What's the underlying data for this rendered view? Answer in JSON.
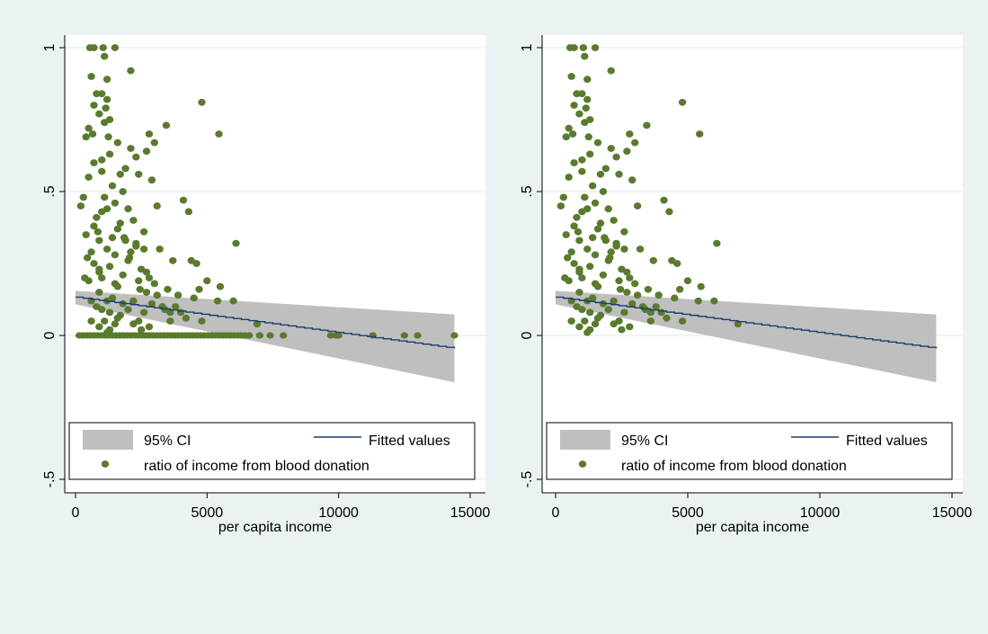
{
  "colors": {
    "background": "#eaf2f3",
    "plot_region": "#ffffff",
    "marker": "#5a7a2e",
    "fit_line": "#1a3f6e",
    "ci_band": "#bfbfbf",
    "gridline": "#dde8ea"
  },
  "chart_data": [
    {
      "type": "scatter",
      "xlabel": "per capita income",
      "ylabel": "",
      "xlim": [
        0,
        15000
      ],
      "ylim": [
        -0.5,
        1
      ],
      "x_ticks": [
        "0",
        "5000",
        "10000",
        "15000"
      ],
      "y_ticks": [
        "-.5",
        "0",
        ".5",
        "1"
      ],
      "grid": true,
      "legend_position": "bottom",
      "legend": {
        "ci": "95% CI",
        "fit": "Fitted values",
        "points": "ratio of income from blood donation"
      },
      "fit_line": {
        "x": [
          0,
          14400
        ],
        "y": [
          0.133,
          -0.045
        ]
      },
      "ci_band": {
        "x": [
          0,
          14400
        ],
        "upper": [
          0.155,
          0.073
        ],
        "lower": [
          0.108,
          -0.163
        ]
      },
      "zero_ratio_points": {
        "y": 0,
        "x": [
          140,
          280,
          420,
          560,
          700,
          840,
          980,
          1120,
          1260,
          1400,
          1540,
          1680,
          1820,
          1960,
          2100,
          2240,
          2380,
          2520,
          2660,
          2800,
          2940,
          3080,
          3220,
          3360,
          3500,
          3640,
          3780,
          3920,
          4060,
          4200,
          4340,
          4480,
          4620,
          4760,
          4900,
          5040,
          5180,
          5320,
          5460,
          5600,
          5740,
          5880,
          6020,
          6160,
          6300,
          6440,
          6600,
          7000,
          7400,
          7900,
          9700,
          9900,
          10000,
          11300,
          12500,
          13000,
          14400
        ]
      },
      "points": {
        "x": [
          550,
          700,
          1050,
          1500,
          600,
          1100,
          1200,
          1000,
          800,
          1200,
          2100,
          700,
          1150,
          4800,
          900,
          1100,
          500,
          1300,
          650,
          1250,
          3450,
          2800,
          5450,
          400,
          1600,
          3000,
          2100,
          1300,
          2700,
          700,
          2300,
          1900,
          1000,
          1700,
          2400,
          500,
          2900,
          4100,
          1800,
          1100,
          1500,
          2000,
          3100,
          1000,
          4300,
          800,
          2200,
          700,
          1600,
          2600,
          400,
          900,
          1400,
          2300,
          3200,
          1200,
          2600,
          600,
          1500,
          3700,
          4400,
          2000,
          700,
          1300,
          6100,
          2500,
          900,
          1800,
          2800,
          1000,
          2400,
          1500,
          5000,
          3000,
          1600,
          3500,
          4700,
          900,
          5500,
          2700,
          3900,
          1400,
          1200,
          600,
          4500,
          2200,
          1800,
          2900,
          3300,
          800,
          5400,
          6000,
          1000,
          2000,
          3800,
          1300,
          2600,
          1700,
          4200,
          1600,
          600,
          1100,
          2400,
          3600,
          4800,
          1500,
          2200,
          900,
          2800,
          6900,
          1300,
          2500,
          1200,
          4000,
          200,
          300,
          450,
          850,
          1700,
          1900,
          2100,
          2300,
          3400,
          3100,
          1000,
          1400,
          2700,
          3600,
          4600,
          900,
          500,
          1200,
          1850,
          2050,
          2450,
          350
        ],
        "y": [
          1.0,
          1.0,
          1.0,
          1.0,
          0.9,
          0.97,
          0.89,
          0.84,
          0.84,
          0.82,
          0.92,
          0.8,
          0.79,
          0.81,
          0.77,
          0.74,
          0.72,
          0.75,
          0.7,
          0.69,
          0.73,
          0.7,
          0.7,
          0.69,
          0.67,
          0.67,
          0.65,
          0.63,
          0.64,
          0.6,
          0.62,
          0.58,
          0.57,
          0.56,
          0.56,
          0.55,
          0.54,
          0.47,
          0.5,
          0.48,
          0.46,
          0.44,
          0.45,
          0.43,
          0.43,
          0.41,
          0.4,
          0.38,
          0.37,
          0.36,
          0.35,
          0.33,
          0.34,
          0.32,
          0.3,
          0.3,
          0.3,
          0.29,
          0.28,
          0.26,
          0.26,
          0.26,
          0.25,
          0.24,
          0.32,
          0.23,
          0.22,
          0.21,
          0.2,
          0.2,
          0.19,
          0.18,
          0.19,
          0.18,
          0.17,
          0.16,
          0.16,
          0.15,
          0.17,
          0.15,
          0.14,
          0.13,
          0.12,
          0.12,
          0.13,
          0.12,
          0.11,
          0.11,
          0.1,
          0.1,
          0.12,
          0.12,
          0.09,
          0.09,
          0.1,
          0.08,
          0.08,
          0.07,
          0.06,
          0.06,
          0.05,
          0.05,
          0.05,
          0.05,
          0.05,
          0.04,
          0.04,
          0.03,
          0.03,
          0.04,
          0.02,
          0.02,
          0.01,
          0.08,
          0.45,
          0.48,
          0.27,
          0.36,
          0.39,
          0.33,
          0.29,
          0.31,
          0.09,
          0.14,
          0.61,
          0.52,
          0.22,
          0.08,
          0.25,
          0.23,
          0.19,
          0.44,
          0.34,
          0.27,
          0.16,
          0.2
        ]
      }
    },
    {
      "type": "scatter",
      "xlabel": "per capita income",
      "ylabel": "",
      "xlim": [
        0,
        15000
      ],
      "ylim": [
        -0.5,
        1
      ],
      "x_ticks": [
        "0",
        "5000",
        "10000",
        "15000"
      ],
      "y_ticks": [
        "-.5",
        "0",
        ".5",
        "1"
      ],
      "grid": true,
      "legend_position": "bottom",
      "legend": {
        "ci": "95% CI",
        "fit": "Fitted values",
        "points": "ratio of income from blood donation"
      },
      "fit_line": {
        "x": [
          0,
          14400
        ],
        "y": [
          0.133,
          -0.045
        ]
      },
      "ci_band": {
        "x": [
          0,
          14400
        ],
        "upper": [
          0.155,
          0.073
        ],
        "lower": [
          0.108,
          -0.163
        ]
      },
      "zero_ratio_points": {
        "y": 0,
        "x": []
      },
      "points": {
        "x": [
          550,
          700,
          1050,
          1500,
          600,
          1100,
          1200,
          1000,
          800,
          1200,
          2100,
          700,
          1150,
          4800,
          900,
          1100,
          500,
          1300,
          650,
          1250,
          3450,
          2800,
          5450,
          400,
          1600,
          3000,
          2100,
          1300,
          2700,
          700,
          2300,
          1900,
          1000,
          1700,
          2400,
          500,
          2900,
          4100,
          1800,
          1100,
          1500,
          2000,
          3100,
          1000,
          4300,
          800,
          2200,
          700,
          1600,
          2600,
          400,
          900,
          1400,
          2300,
          3200,
          1200,
          2600,
          600,
          1500,
          3700,
          4400,
          2000,
          700,
          1300,
          6100,
          2500,
          900,
          1800,
          2800,
          1000,
          2400,
          1500,
          5000,
          3000,
          1600,
          3500,
          4700,
          900,
          5500,
          2700,
          3900,
          1400,
          1200,
          600,
          4500,
          2200,
          1800,
          2900,
          3300,
          800,
          5400,
          6000,
          1000,
          2000,
          3800,
          1300,
          2600,
          1700,
          4200,
          1600,
          600,
          1100,
          2400,
          3600,
          4800,
          1500,
          2200,
          900,
          2800,
          6900,
          1300,
          2500,
          1200,
          4000,
          200,
          300,
          450,
          850,
          1700,
          1900,
          2100,
          2300,
          3400,
          3100,
          1000,
          1400,
          2700,
          3600,
          4600,
          900,
          500,
          1200,
          1850,
          2050,
          2450,
          350
        ],
        "y": [
          1.0,
          1.0,
          1.0,
          1.0,
          0.9,
          0.97,
          0.89,
          0.84,
          0.84,
          0.82,
          0.92,
          0.8,
          0.79,
          0.81,
          0.77,
          0.74,
          0.72,
          0.75,
          0.7,
          0.69,
          0.73,
          0.7,
          0.7,
          0.69,
          0.67,
          0.67,
          0.65,
          0.63,
          0.64,
          0.6,
          0.62,
          0.58,
          0.57,
          0.56,
          0.56,
          0.55,
          0.54,
          0.47,
          0.5,
          0.48,
          0.46,
          0.44,
          0.45,
          0.43,
          0.43,
          0.41,
          0.4,
          0.38,
          0.37,
          0.36,
          0.35,
          0.33,
          0.34,
          0.32,
          0.3,
          0.3,
          0.3,
          0.29,
          0.28,
          0.26,
          0.26,
          0.26,
          0.25,
          0.24,
          0.32,
          0.23,
          0.22,
          0.21,
          0.2,
          0.2,
          0.19,
          0.18,
          0.19,
          0.18,
          0.17,
          0.16,
          0.16,
          0.15,
          0.17,
          0.15,
          0.14,
          0.13,
          0.12,
          0.12,
          0.13,
          0.12,
          0.11,
          0.11,
          0.1,
          0.1,
          0.12,
          0.12,
          0.09,
          0.09,
          0.1,
          0.08,
          0.08,
          0.07,
          0.06,
          0.06,
          0.05,
          0.05,
          0.05,
          0.05,
          0.05,
          0.04,
          0.04,
          0.03,
          0.03,
          0.04,
          0.02,
          0.02,
          0.01,
          0.08,
          0.45,
          0.48,
          0.27,
          0.36,
          0.39,
          0.33,
          0.29,
          0.31,
          0.09,
          0.14,
          0.61,
          0.52,
          0.22,
          0.08,
          0.25,
          0.23,
          0.19,
          0.44,
          0.34,
          0.27,
          0.16,
          0.2
        ]
      }
    }
  ]
}
